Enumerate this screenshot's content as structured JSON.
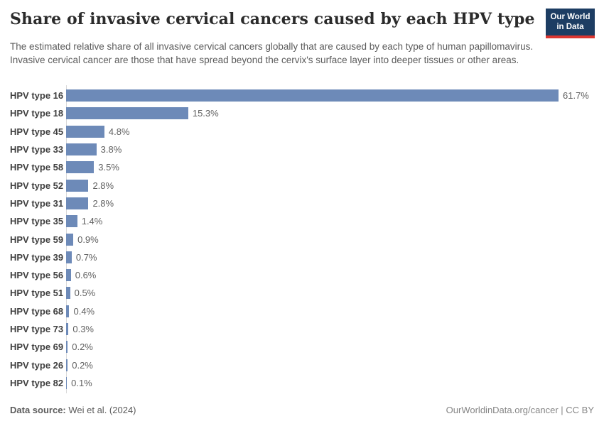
{
  "header": {
    "title": "Share of invasive cervical cancers caused by each HPV type",
    "subtitle": "The estimated relative share of all invasive cervical cancers globally that are caused by each type of human papillomavirus. Invasive cervical cancer are those that have spread beyond the cervix's surface layer into deeper tissues or other areas.",
    "logo": {
      "line1": "Our World",
      "line2": "in Data",
      "bg_color": "#1d3d63",
      "accent_color": "#dc3630"
    }
  },
  "chart_data": {
    "type": "bar",
    "orientation": "horizontal",
    "title": "Share of invasive cervical cancers caused by each HPV type",
    "categories": [
      "HPV type 16",
      "HPV type 18",
      "HPV type 45",
      "HPV type 33",
      "HPV type 58",
      "HPV type 52",
      "HPV type 31",
      "HPV type 35",
      "HPV type 59",
      "HPV type 39",
      "HPV type 56",
      "HPV type 51",
      "HPV type 68",
      "HPV type 73",
      "HPV type 69",
      "HPV type 26",
      "HPV type 82"
    ],
    "values": [
      61.7,
      15.3,
      4.8,
      3.8,
      3.5,
      2.8,
      2.8,
      1.4,
      0.9,
      0.7,
      0.6,
      0.5,
      0.4,
      0.3,
      0.2,
      0.2,
      0.1
    ],
    "value_labels": [
      "61.7%",
      "15.3%",
      "4.8%",
      "3.8%",
      "3.5%",
      "2.8%",
      "2.8%",
      "1.4%",
      "0.9%",
      "0.7%",
      "0.6%",
      "0.5%",
      "0.4%",
      "0.3%",
      "0.2%",
      "0.2%",
      "0.1%"
    ],
    "unit": "%",
    "xlim": [
      0,
      65
    ],
    "grid": false,
    "legend": "none",
    "bar_color": "#6d8ab8",
    "axis_line_color": "#d9d9d9"
  },
  "footer": {
    "source_label": "Data source:",
    "source_value": " Wei et al. (2024)",
    "credit": "OurWorldinData.org/cancer | CC BY"
  }
}
